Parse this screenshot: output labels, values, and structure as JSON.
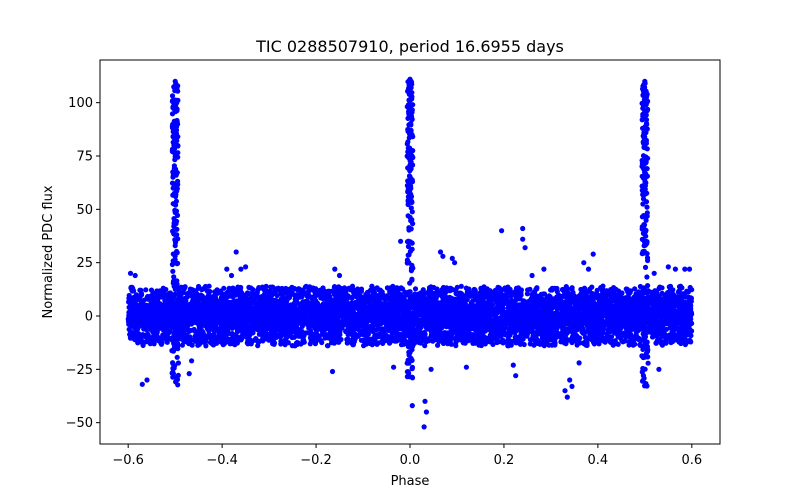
{
  "chart_data": {
    "type": "scatter",
    "title": "TIC 0288507910, period 16.6955 days",
    "xlabel": "Phase",
    "ylabel": "Normalized PDC flux",
    "xlim": [
      -0.66,
      0.66
    ],
    "ylim": [
      -60,
      120
    ],
    "x_ticks": [
      -0.6,
      -0.4,
      -0.2,
      0.0,
      0.2,
      0.4,
      0.6
    ],
    "x_tick_labels": [
      "−0.6",
      "−0.4",
      "−0.2",
      "0.0",
      "0.2",
      "0.4",
      "0.6"
    ],
    "y_ticks": [
      -50,
      -25,
      0,
      25,
      50,
      75,
      100
    ],
    "y_tick_labels": [
      "−50",
      "−25",
      "0",
      "25",
      "50",
      "75",
      "100"
    ],
    "marker_color": "#0000ff",
    "grid": false,
    "series": [
      {
        "name": "PDC flux",
        "phase_range": [
          -0.6,
          0.6
        ],
        "band_sigma": 5.5,
        "band_extent": 13,
        "spikes": [
          {
            "phase": -0.5,
            "peak": 110,
            "trough": -34
          },
          {
            "phase": 0.0,
            "peak": 111,
            "trough": -30
          },
          {
            "phase": 0.5,
            "peak": 110,
            "trough": -34
          }
        ],
        "outliers": [
          {
            "x": -0.57,
            "y": -32
          },
          {
            "x": -0.56,
            "y": -30
          },
          {
            "x": -0.585,
            "y": 19
          },
          {
            "x": -0.595,
            "y": 20
          },
          {
            "x": -0.47,
            "y": -27
          },
          {
            "x": -0.465,
            "y": -21
          },
          {
            "x": -0.39,
            "y": 22
          },
          {
            "x": -0.38,
            "y": 19
          },
          {
            "x": -0.37,
            "y": 30
          },
          {
            "x": -0.36,
            "y": 22
          },
          {
            "x": -0.35,
            "y": 23
          },
          {
            "x": -0.16,
            "y": 22
          },
          {
            "x": -0.15,
            "y": 19
          },
          {
            "x": -0.165,
            "y": -26
          },
          {
            "x": -0.02,
            "y": 35
          },
          {
            "x": -0.035,
            "y": -24
          },
          {
            "x": 0.005,
            "y": -42
          },
          {
            "x": 0.03,
            "y": -52
          },
          {
            "x": 0.032,
            "y": -40
          },
          {
            "x": 0.035,
            "y": -45
          },
          {
            "x": 0.045,
            "y": -25
          },
          {
            "x": 0.065,
            "y": 30
          },
          {
            "x": 0.07,
            "y": 28
          },
          {
            "x": 0.09,
            "y": 27
          },
          {
            "x": 0.095,
            "y": 25
          },
          {
            "x": 0.12,
            "y": -24
          },
          {
            "x": 0.195,
            "y": 40
          },
          {
            "x": 0.22,
            "y": -23
          },
          {
            "x": 0.225,
            "y": -28
          },
          {
            "x": 0.24,
            "y": 41
          },
          {
            "x": 0.24,
            "y": 36
          },
          {
            "x": 0.245,
            "y": 32
          },
          {
            "x": 0.26,
            "y": 19
          },
          {
            "x": 0.285,
            "y": 22
          },
          {
            "x": 0.33,
            "y": -35
          },
          {
            "x": 0.335,
            "y": -38
          },
          {
            "x": 0.34,
            "y": -30
          },
          {
            "x": 0.345,
            "y": -33
          },
          {
            "x": 0.36,
            "y": -22
          },
          {
            "x": 0.39,
            "y": 29
          },
          {
            "x": 0.37,
            "y": 25
          },
          {
            "x": 0.38,
            "y": 22
          },
          {
            "x": 0.52,
            "y": 20
          },
          {
            "x": 0.53,
            "y": -25
          },
          {
            "x": 0.55,
            "y": 23
          },
          {
            "x": 0.565,
            "y": 22
          },
          {
            "x": 0.585,
            "y": 22
          },
          {
            "x": 0.595,
            "y": 22
          }
        ]
      }
    ]
  }
}
